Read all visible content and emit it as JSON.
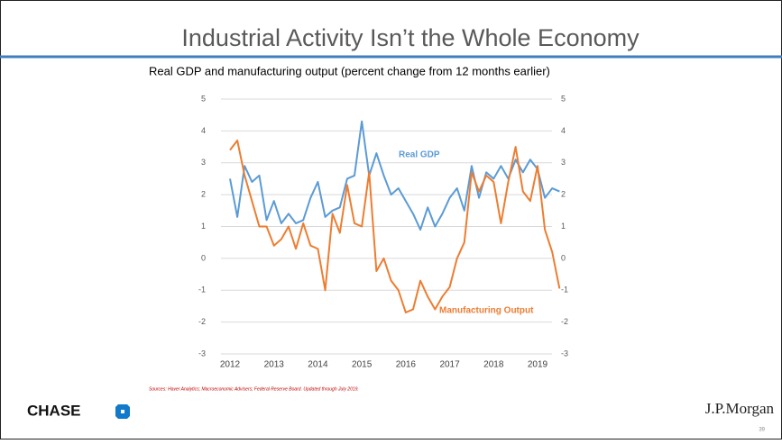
{
  "chart_data": {
    "type": "line",
    "title": "Industrial Activity Isn’t the Whole Economy",
    "subtitle": "Real GDP and manufacturing output (percent change from 12 months earlier)",
    "source": "Sources: Haver Analytics; Macroeconomic Advisers; Federal Reserve Board. Updated through July 2019.",
    "x": [
      2012,
      2012.167,
      2012.333,
      2012.5,
      2012.667,
      2012.833,
      2013,
      2013.167,
      2013.333,
      2013.5,
      2013.667,
      2013.833,
      2014,
      2014.167,
      2014.333,
      2014.5,
      2014.667,
      2014.833,
      2015,
      2015.167,
      2015.333,
      2015.5,
      2015.667,
      2015.833,
      2016,
      2016.167,
      2016.333,
      2016.5,
      2016.667,
      2016.833,
      2017,
      2017.167,
      2017.333,
      2017.5,
      2017.667,
      2017.833,
      2018,
      2018.167,
      2018.333,
      2018.5,
      2018.667,
      2018.833,
      2019,
      2019.167,
      2019.333,
      2019.5
    ],
    "series": [
      {
        "name": "Real GDP",
        "color": "#5b9bd5",
        "values": [
          2.5,
          1.3,
          2.9,
          2.4,
          2.6,
          1.2,
          1.8,
          1.1,
          1.4,
          1.1,
          1.2,
          1.9,
          2.4,
          1.3,
          1.5,
          1.6,
          2.5,
          2.6,
          4.3,
          2.6,
          3.3,
          2.6,
          2.0,
          2.2,
          1.8,
          1.4,
          0.9,
          1.6,
          1.0,
          1.4,
          1.9,
          2.2,
          1.5,
          2.9,
          1.9,
          2.7,
          2.5,
          2.9,
          2.5,
          3.1,
          2.7,
          3.1,
          2.8,
          1.9,
          2.2,
          2.1
        ]
      },
      {
        "name": "Manufacturing Output",
        "color": "#ed7d31",
        "values": [
          3.4,
          3.7,
          2.6,
          1.8,
          1.0,
          1.0,
          0.4,
          0.6,
          1.0,
          0.3,
          1.1,
          0.4,
          0.3,
          -1.0,
          1.4,
          0.8,
          2.3,
          1.1,
          1.0,
          2.7,
          -0.4,
          0.0,
          -0.7,
          -1.0,
          -1.7,
          -1.6,
          -0.7,
          -1.2,
          -1.6,
          -1.2,
          -0.9,
          0.0,
          0.5,
          2.7,
          2.1,
          2.6,
          2.4,
          1.1,
          2.4,
          3.5,
          2.1,
          1.8,
          2.9,
          0.9,
          0.2,
          -0.95
        ]
      }
    ],
    "xlim": [
      2012,
      2019.5
    ],
    "xticks": [
      2012,
      2013,
      2014,
      2015,
      2016,
      2017,
      2018,
      2019
    ],
    "ylim": [
      -3,
      5
    ],
    "yticks": [
      -3,
      -2,
      -1,
      0,
      1,
      2,
      3,
      4,
      5
    ],
    "y2lim": [
      -3,
      5
    ],
    "y2ticks": [
      -3,
      -2,
      -1,
      0,
      1,
      2,
      3,
      4,
      5
    ],
    "grid": true
  },
  "footer": {
    "left_logo": "CHASE",
    "right_logo": "J.P.Morgan",
    "page_number": "39"
  }
}
